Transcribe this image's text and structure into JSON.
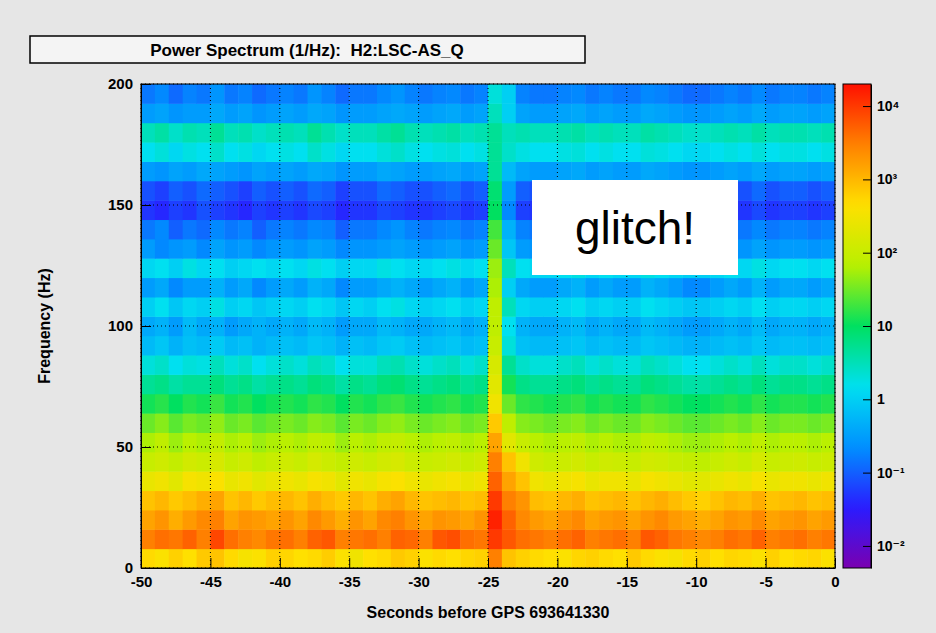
{
  "chart_data": {
    "type": "heatmap",
    "title": "Power Spectrum (1/Hz):  H2:LSC-AS_Q",
    "xlabel": "Seconds before GPS 693641330",
    "ylabel": "Frequency (Hz)",
    "annotation": "glitch!",
    "xlim": [
      -50,
      0
    ],
    "ylim": [
      0,
      200
    ],
    "xticks": [
      -50,
      -45,
      -40,
      -35,
      -30,
      -25,
      -20,
      -15,
      -10,
      -5,
      0
    ],
    "yticks": [
      0,
      50,
      100,
      150,
      200
    ],
    "grid": true,
    "x_bins": [
      -50,
      -49,
      -48,
      -47,
      -46,
      -45,
      -44,
      -43,
      -42,
      -41,
      -40,
      -39,
      -38,
      -37,
      -36,
      -35,
      -34,
      -33,
      -32,
      -31,
      -30,
      -29,
      -28,
      -27,
      -26,
      -25,
      -24,
      -23,
      -22,
      -21,
      -20,
      -19,
      -18,
      -17,
      -16,
      -15,
      -14,
      -13,
      -12,
      -11,
      -10,
      -9,
      -8,
      -7,
      -6,
      -5,
      -4,
      -3,
      -2,
      -1,
      0
    ],
    "y_bins": [
      0,
      8,
      16,
      24,
      32,
      40,
      48,
      56,
      64,
      72,
      80,
      88,
      96,
      104,
      112,
      120,
      128,
      136,
      144,
      152,
      160,
      168,
      176,
      184,
      192,
      200
    ],
    "cells": [
      [
        500,
        400,
        600,
        450,
        700,
        800,
        500,
        350,
        400,
        600,
        550,
        450,
        500,
        650,
        400,
        300,
        450,
        500,
        700,
        600,
        400,
        500,
        450,
        550,
        600,
        3000,
        800,
        600,
        500,
        450,
        400,
        550,
        600,
        500,
        450,
        700,
        500,
        400,
        350,
        500,
        600,
        450,
        550,
        500,
        400,
        600,
        450,
        500,
        550,
        400
      ],
      [
        3000,
        4000,
        3500,
        5000,
        3000,
        8000,
        4000,
        3000,
        2500,
        3500,
        4000,
        3000,
        5000,
        6000,
        3000,
        3500,
        4000,
        3000,
        5000,
        4500,
        3000,
        6000,
        7000,
        4000,
        3500,
        10000,
        6000,
        4000,
        3500,
        3000,
        4000,
        5000,
        3000,
        3500,
        4000,
        3000,
        6000,
        5000,
        3500,
        3000,
        2500,
        3000,
        4000,
        3500,
        5000,
        3000,
        3500,
        4000,
        3000,
        3500
      ],
      [
        1500,
        2000,
        1200,
        1800,
        2500,
        3000,
        1500,
        2000,
        1800,
        1500,
        2000,
        1500,
        2500,
        1800,
        1200,
        2000,
        1500,
        2500,
        3000,
        2000,
        1500,
        2000,
        1800,
        1500,
        2000,
        15000,
        5000,
        2500,
        1800,
        1500,
        2000,
        2500,
        1500,
        1800,
        2000,
        1500,
        2000,
        2500,
        1800,
        1500,
        1200,
        1500,
        2000,
        1800,
        2500,
        1500,
        1800,
        2000,
        1500,
        1800
      ],
      [
        800,
        1000,
        700,
        900,
        1200,
        1500,
        800,
        1000,
        700,
        900,
        1000,
        800,
        1200,
        900,
        700,
        1000,
        800,
        1200,
        1500,
        1000,
        800,
        900,
        1000,
        800,
        900,
        10000,
        3000,
        2000,
        900,
        800,
        1000,
        1200,
        800,
        900,
        1000,
        800,
        1000,
        1200,
        900,
        700,
        600,
        800,
        1000,
        900,
        1200,
        800,
        900,
        1000,
        800,
        900
      ],
      [
        250,
        300,
        200,
        350,
        300,
        400,
        250,
        300,
        200,
        250,
        300,
        250,
        350,
        300,
        200,
        300,
        250,
        350,
        400,
        300,
        250,
        300,
        350,
        250,
        300,
        5000,
        1500,
        800,
        300,
        250,
        300,
        350,
        250,
        300,
        300,
        250,
        350,
        300,
        250,
        200,
        200,
        250,
        300,
        250,
        350,
        250,
        300,
        300,
        250,
        300
      ],
      [
        100,
        120,
        90,
        130,
        110,
        150,
        100,
        120,
        80,
        100,
        120,
        100,
        140,
        110,
        90,
        120,
        100,
        130,
        150,
        110,
        100,
        110,
        130,
        100,
        120,
        3000,
        800,
        300,
        120,
        100,
        110,
        130,
        100,
        120,
        110,
        100,
        130,
        120,
        100,
        90,
        80,
        100,
        120,
        100,
        140,
        100,
        110,
        120,
        100,
        110
      ],
      [
        60,
        80,
        50,
        70,
        60,
        90,
        60,
        70,
        50,
        60,
        70,
        60,
        80,
        70,
        50,
        70,
        60,
        80,
        90,
        70,
        60,
        70,
        80,
        60,
        70,
        1500,
        200,
        100,
        70,
        60,
        70,
        80,
        60,
        70,
        60,
        60,
        80,
        70,
        60,
        50,
        50,
        60,
        70,
        60,
        80,
        60,
        70,
        70,
        60,
        70
      ],
      [
        30,
        40,
        25,
        35,
        30,
        45,
        30,
        35,
        25,
        30,
        35,
        30,
        40,
        35,
        25,
        35,
        30,
        40,
        45,
        35,
        30,
        35,
        40,
        30,
        35,
        700,
        80,
        40,
        35,
        30,
        35,
        40,
        30,
        35,
        30,
        30,
        40,
        35,
        30,
        25,
        25,
        30,
        35,
        30,
        40,
        30,
        35,
        35,
        30,
        35
      ],
      [
        12,
        15,
        10,
        14,
        12,
        18,
        12,
        14,
        10,
        12,
        14,
        12,
        16,
        14,
        10,
        14,
        12,
        16,
        18,
        14,
        12,
        14,
        16,
        12,
        14,
        300,
        30,
        16,
        14,
        12,
        14,
        16,
        12,
        14,
        12,
        12,
        16,
        14,
        12,
        10,
        10,
        12,
        14,
        12,
        16,
        12,
        14,
        14,
        12,
        14
      ],
      [
        5,
        6,
        4,
        5,
        5,
        7,
        5,
        6,
        4,
        5,
        6,
        5,
        7,
        6,
        4,
        6,
        5,
        7,
        8,
        6,
        5,
        6,
        7,
        5,
        6,
        200,
        12,
        6,
        5,
        5,
        6,
        7,
        5,
        6,
        5,
        5,
        7,
        6,
        5,
        4,
        4,
        5,
        6,
        5,
        7,
        5,
        6,
        6,
        5,
        6
      ],
      [
        2,
        2.5,
        1.5,
        2,
        1.8,
        3,
        2,
        2.5,
        1.5,
        2,
        2.5,
        2,
        3,
        2.5,
        1.5,
        2,
        2,
        3,
        3.5,
        2.5,
        2,
        2.5,
        3,
        2,
        2.5,
        150,
        5,
        2.5,
        2,
        2,
        2.5,
        3,
        2,
        2.5,
        2,
        2,
        3,
        2.5,
        2,
        1.5,
        1.5,
        2,
        2.5,
        2,
        3,
        2,
        2.5,
        2.5,
        2,
        2.5
      ],
      [
        0.6,
        0.8,
        0.5,
        0.7,
        0.6,
        0.9,
        0.6,
        0.7,
        0.5,
        0.6,
        0.7,
        0.6,
        0.8,
        0.7,
        0.5,
        0.7,
        0.6,
        0.8,
        0.9,
        0.7,
        0.6,
        0.7,
        0.8,
        0.6,
        0.7,
        100,
        2,
        0.7,
        0.6,
        0.6,
        0.7,
        0.8,
        0.6,
        0.7,
        0.6,
        0.6,
        0.8,
        0.7,
        0.6,
        0.5,
        0.5,
        0.6,
        0.7,
        0.6,
        0.8,
        0.6,
        0.7,
        0.7,
        0.6,
        0.7
      ],
      [
        0.4,
        0.5,
        0.3,
        0.6,
        0.4,
        0.5,
        0.3,
        0.4,
        0.5,
        0.4,
        0.5,
        0.4,
        0.6,
        0.5,
        0.3,
        0.4,
        0.4,
        0.6,
        0.5,
        0.4,
        0.4,
        0.5,
        0.6,
        0.4,
        0.5,
        80,
        1.5,
        0.5,
        0.4,
        0.4,
        0.5,
        0.6,
        0.4,
        0.5,
        0.4,
        0.4,
        0.6,
        0.5,
        0.4,
        0.3,
        0.3,
        0.4,
        0.5,
        0.4,
        0.6,
        0.4,
        0.5,
        0.5,
        0.4,
        0.5
      ],
      [
        1,
        1.5,
        0.8,
        1.2,
        1,
        1.8,
        1,
        1.2,
        0.8,
        1,
        1.2,
        1,
        1.5,
        1.2,
        0.8,
        1.2,
        1,
        1.5,
        1.8,
        1.2,
        1,
        1.2,
        1.5,
        1,
        1.2,
        80,
        3,
        1.2,
        1,
        1,
        1.2,
        1.5,
        1,
        1.2,
        1,
        1,
        1.5,
        1.2,
        1,
        0.8,
        0.8,
        1,
        1.2,
        1,
        1.5,
        1,
        1.2,
        1.2,
        1,
        1.2
      ],
      [
        0.3,
        0.4,
        0.2,
        0.3,
        0.3,
        0.5,
        0.3,
        0.4,
        0.2,
        0.3,
        0.4,
        0.3,
        0.5,
        0.4,
        0.2,
        0.3,
        0.3,
        0.4,
        0.5,
        0.4,
        0.3,
        0.4,
        0.5,
        0.3,
        0.4,
        60,
        1,
        0.4,
        0.3,
        0.3,
        0.4,
        0.5,
        0.3,
        0.4,
        0.3,
        0.3,
        0.5,
        0.4,
        0.3,
        0.2,
        0.2,
        0.3,
        0.4,
        0.3,
        0.5,
        0.3,
        0.4,
        0.4,
        0.3,
        0.4
      ],
      [
        1.2,
        1.5,
        1,
        1.8,
        1.2,
        1.5,
        1,
        1.2,
        1.5,
        1.2,
        1.5,
        1.2,
        1.8,
        1.5,
        1,
        1.2,
        1.2,
        1.8,
        1.5,
        1.2,
        1.2,
        1.5,
        1.8,
        1.2,
        1.5,
        50,
        3,
        1.5,
        1.2,
        1.2,
        1.5,
        1.8,
        1.2,
        1.5,
        1.2,
        1.2,
        1.8,
        1.5,
        1.2,
        1,
        1,
        1.2,
        1.5,
        1.2,
        1.8,
        1.2,
        1.5,
        1.5,
        1.2,
        1.5
      ],
      [
        0.3,
        0.2,
        0.25,
        0.3,
        0.2,
        0.35,
        0.25,
        0.3,
        0.2,
        0.25,
        0.3,
        0.25,
        0.35,
        0.3,
        0.2,
        0.25,
        0.25,
        0.3,
        0.35,
        0.3,
        0.25,
        0.3,
        0.35,
        0.25,
        0.3,
        30,
        0.8,
        0.3,
        0.25,
        0.25,
        0.3,
        0.35,
        0.25,
        0.3,
        0.25,
        0.25,
        0.35,
        0.3,
        0.25,
        0.2,
        0.2,
        0.25,
        0.3,
        0.25,
        0.35,
        0.25,
        0.3,
        0.3,
        0.25,
        0.3
      ],
      [
        0.15,
        0.2,
        0.1,
        0.15,
        0.12,
        0.2,
        0.15,
        0.18,
        0.1,
        0.15,
        0.18,
        0.15,
        0.2,
        0.18,
        0.1,
        0.15,
        0.15,
        0.2,
        0.25,
        0.18,
        0.15,
        0.18,
        0.2,
        0.15,
        0.18,
        20,
        0.5,
        0.18,
        0.15,
        0.15,
        0.18,
        0.2,
        0.15,
        0.18,
        0.15,
        0.15,
        0.2,
        0.18,
        0.15,
        0.12,
        0.12,
        0.15,
        0.18,
        0.15,
        0.2,
        0.15,
        0.18,
        0.18,
        0.15,
        0.18
      ],
      [
        0.05,
        0.04,
        0.06,
        0.05,
        0.08,
        0.06,
        0.05,
        0.04,
        0.06,
        0.05,
        0.06,
        0.05,
        0.07,
        0.06,
        0.04,
        0.05,
        0.05,
        0.07,
        0.06,
        0.05,
        0.05,
        0.06,
        0.07,
        0.05,
        0.06,
        10,
        0.2,
        0.06,
        0.05,
        0.05,
        0.06,
        0.07,
        0.05,
        0.06,
        0.05,
        0.05,
        0.07,
        0.06,
        0.05,
        0.04,
        0.04,
        0.05,
        0.06,
        0.05,
        0.07,
        0.05,
        0.06,
        0.06,
        0.05,
        0.06
      ],
      [
        0.08,
        0.06,
        0.1,
        0.08,
        0.12,
        0.1,
        0.08,
        0.06,
        0.1,
        0.08,
        0.1,
        0.08,
        0.12,
        0.1,
        0.06,
        0.08,
        0.08,
        0.12,
        0.1,
        0.08,
        0.08,
        0.1,
        0.12,
        0.08,
        0.1,
        8,
        0.3,
        0.1,
        0.08,
        0.08,
        0.1,
        0.12,
        0.08,
        0.1,
        0.08,
        0.08,
        0.12,
        0.1,
        0.08,
        0.06,
        0.06,
        0.08,
        0.1,
        0.08,
        0.12,
        0.08,
        0.1,
        0.1,
        0.08,
        0.1
      ],
      [
        0.3,
        0.25,
        0.35,
        0.3,
        0.4,
        0.35,
        0.3,
        0.25,
        0.35,
        0.3,
        0.35,
        0.3,
        0.4,
        0.35,
        0.25,
        0.3,
        0.3,
        0.4,
        0.35,
        0.3,
        0.3,
        0.35,
        0.4,
        0.3,
        0.35,
        5,
        0.6,
        0.35,
        0.3,
        0.3,
        0.35,
        0.4,
        0.3,
        0.35,
        0.3,
        0.3,
        0.4,
        0.35,
        0.3,
        0.25,
        0.25,
        0.3,
        0.35,
        0.3,
        0.4,
        0.3,
        0.35,
        0.35,
        0.3,
        0.35
      ],
      [
        1.5,
        2,
        1.2,
        1.8,
        1.5,
        2.5,
        1.5,
        1.8,
        1.2,
        1.5,
        1.8,
        1.5,
        2.5,
        1.8,
        1.2,
        1.5,
        1.5,
        2,
        2.5,
        1.8,
        1.5,
        1.8,
        2,
        1.5,
        1.8,
        5,
        2.5,
        1.8,
        1.5,
        1.5,
        1.8,
        2,
        1.5,
        1.8,
        1.5,
        1.5,
        2,
        1.8,
        1.5,
        1.2,
        1.2,
        1.5,
        1.8,
        1.5,
        2,
        1.5,
        1.8,
        1.8,
        1.5,
        1.8
      ],
      [
        3,
        4,
        2.5,
        3.5,
        3,
        5,
        3,
        3.5,
        2.5,
        3,
        3.5,
        3,
        5,
        3.5,
        2.5,
        3,
        3,
        4,
        5,
        3.5,
        3,
        3.5,
        4,
        3,
        3.5,
        5,
        3,
        3.5,
        3,
        3,
        3.5,
        4,
        3,
        3.5,
        3,
        3,
        4,
        3.5,
        3,
        2.5,
        2.5,
        3,
        3.5,
        3,
        4,
        3,
        3.5,
        3.5,
        3,
        3.5
      ],
      [
        0.3,
        0.35,
        0.25,
        0.3,
        0.3,
        0.4,
        0.3,
        0.35,
        0.25,
        0.3,
        0.35,
        0.3,
        0.4,
        0.35,
        0.25,
        0.3,
        0.3,
        0.35,
        0.4,
        0.35,
        0.3,
        0.35,
        0.4,
        0.3,
        0.35,
        3,
        1,
        0.35,
        0.3,
        0.3,
        0.35,
        0.4,
        0.3,
        0.35,
        0.3,
        0.3,
        0.4,
        0.35,
        0.3,
        0.25,
        0.25,
        0.3,
        0.35,
        0.3,
        0.4,
        0.3,
        0.35,
        0.35,
        0.3,
        0.35
      ],
      [
        0.15,
        0.2,
        0.12,
        0.18,
        0.15,
        0.25,
        0.15,
        0.18,
        0.12,
        0.15,
        0.18,
        0.15,
        0.25,
        0.18,
        0.12,
        0.15,
        0.15,
        0.2,
        0.25,
        0.18,
        0.15,
        0.18,
        0.2,
        0.15,
        0.18,
        2,
        1,
        0.18,
        0.15,
        0.15,
        0.18,
        0.2,
        0.15,
        0.18,
        0.15,
        0.15,
        0.2,
        0.18,
        0.15,
        0.12,
        0.12,
        0.15,
        0.18,
        0.15,
        0.2,
        0.15,
        0.18,
        0.18,
        0.15,
        0.18
      ]
    ],
    "colorbar": {
      "range": [
        0.005,
        20000
      ],
      "log": true,
      "ticks": [
        {
          "value": 0.01,
          "label": "10⁻²"
        },
        {
          "value": 0.1,
          "label": "10⁻¹"
        },
        1,
        10,
        {
          "value": 100,
          "label": "10²"
        },
        {
          "value": 1000,
          "label": "10³"
        },
        {
          "value": 10000,
          "label": "10⁴"
        }
      ]
    }
  }
}
